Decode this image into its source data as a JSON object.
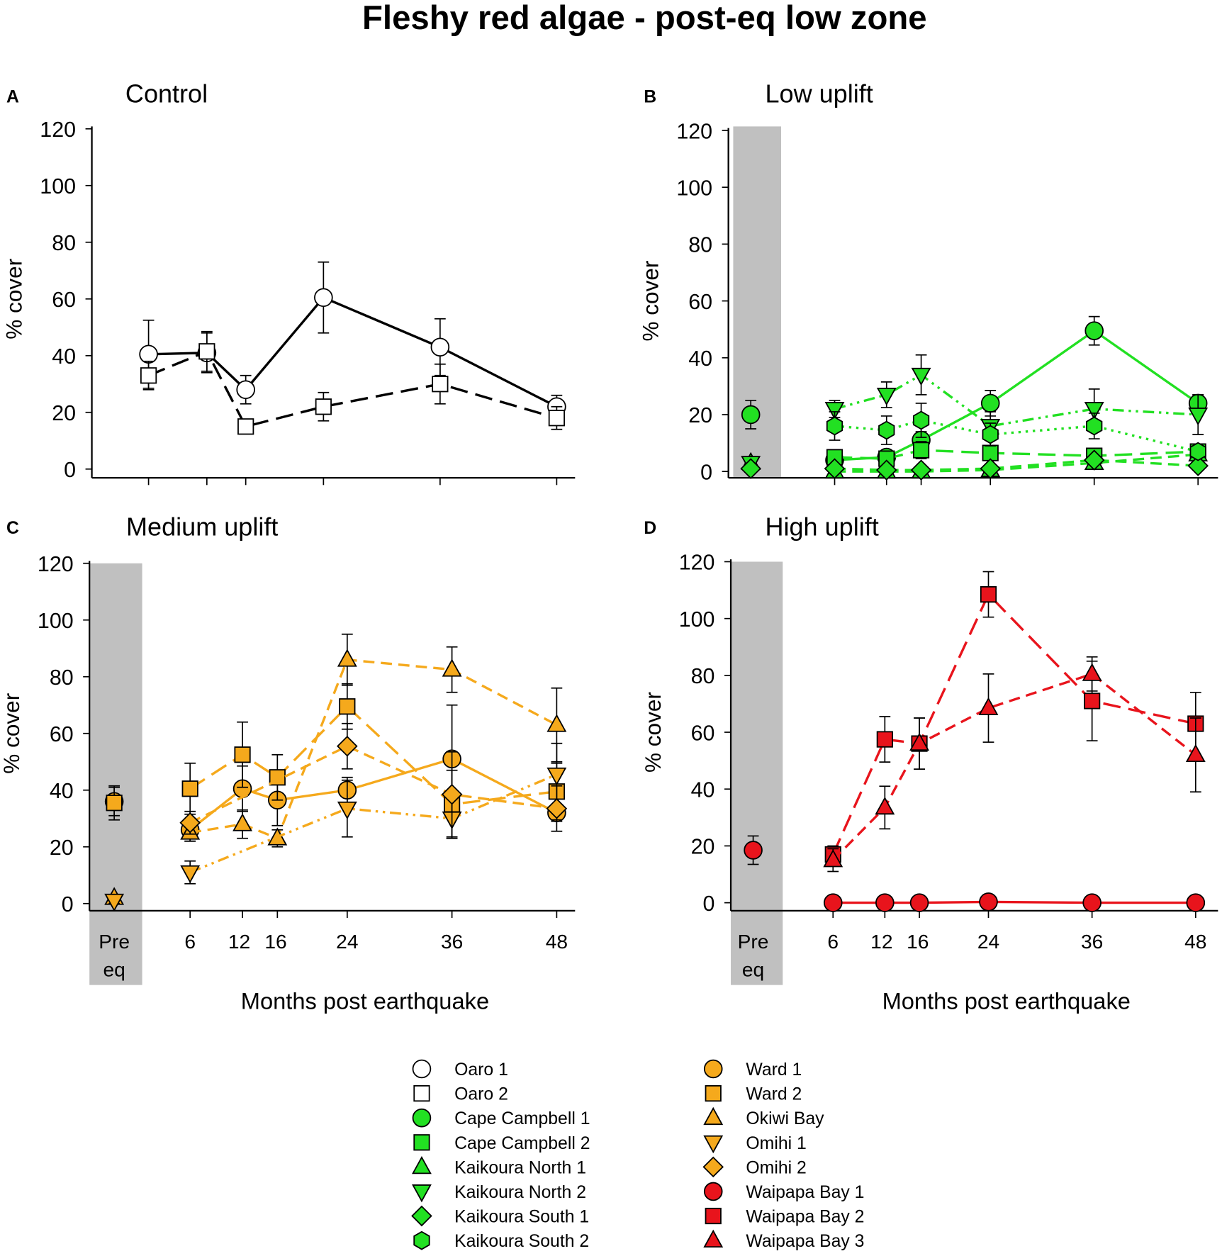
{
  "title": "Fleshy red algae - post-eq low zone",
  "colors": {
    "control": "#ffffff",
    "low": "#22e022",
    "medium": "#f5a91c",
    "high": "#e8141c",
    "shade": "#c0c0c0"
  },
  "chart_data": [
    {
      "panel": "A",
      "title": "Control",
      "type": "line",
      "ylabel": "% cover",
      "xlabel": "",
      "ylim": [
        0,
        120
      ],
      "yticks": [
        0,
        20,
        40,
        60,
        80,
        100,
        120
      ],
      "x_ticks": [
        6,
        12,
        16,
        24,
        36,
        48
      ],
      "x_tick_labels": [],
      "pre_eq_shaded": false,
      "color_key": "control",
      "series": [
        {
          "name": "Oaro 1",
          "marker": "circle",
          "line": "solid",
          "x": [
            6,
            12,
            16,
            24,
            36,
            48
          ],
          "y": [
            40.5,
            41,
            28,
            60.5,
            43,
            22
          ],
          "err": [
            12,
            7,
            5,
            12.5,
            10,
            4
          ]
        },
        {
          "name": "Oaro 2",
          "marker": "square",
          "line": "long-dash",
          "x": [
            6,
            12,
            16,
            24,
            36,
            48
          ],
          "y": [
            33,
            41.5,
            15,
            22,
            30,
            18
          ],
          "err": [
            5,
            7,
            2,
            5,
            7,
            4
          ]
        }
      ]
    },
    {
      "panel": "B",
      "title": "Low uplift",
      "type": "line",
      "ylabel": "% cover",
      "xlabel": "",
      "ylim": [
        0,
        120
      ],
      "yticks": [
        0,
        20,
        40,
        60,
        80,
        100,
        120
      ],
      "x_ticks": [
        6,
        12,
        16,
        24,
        36,
        48
      ],
      "x_tick_labels": [],
      "pre_eq_shaded": true,
      "color_key": "low",
      "series": [
        {
          "name": "Cape Campbell 1",
          "marker": "circle",
          "line": "solid",
          "x": [
            "Pre eq",
            6,
            12,
            16,
            24,
            36,
            48
          ],
          "y": [
            20,
            4,
            5,
            11,
            24,
            49.5,
            24
          ],
          "err": [
            5,
            1,
            1,
            3,
            4.5,
            5,
            3
          ]
        },
        {
          "name": "Cape Campbell 2",
          "marker": "square",
          "line": "long-dash",
          "x": [
            6,
            12,
            16,
            24,
            36,
            48
          ],
          "y": [
            5,
            4.5,
            7.5,
            6.5,
            5.5,
            7
          ],
          "err": [
            1,
            1.5,
            3,
            1.5,
            1,
            1.5
          ]
        },
        {
          "name": "Kaikoura North 1",
          "marker": "triangle-up",
          "line": "dash",
          "x": [
            "Pre eq",
            6,
            12,
            16,
            24,
            36,
            48
          ],
          "y": [
            3,
            0,
            0,
            0,
            0.5,
            3,
            6
          ],
          "err": [
            1,
            0.5,
            0.5,
            0.5,
            0.5,
            1,
            1
          ]
        },
        {
          "name": "Kaikoura North 2",
          "marker": "triangle-down",
          "line": "dash-dot-dot",
          "x": [
            "Pre eq",
            6,
            12,
            16,
            24,
            36,
            48
          ],
          "y": [
            3,
            22,
            27,
            34,
            16,
            22,
            20
          ],
          "err": [
            1,
            3,
            4.5,
            7,
            5,
            7,
            7
          ]
        },
        {
          "name": "Kaikoura South 1",
          "marker": "diamond",
          "line": "dash",
          "x": [
            "Pre eq",
            6,
            12,
            16,
            24,
            36,
            48
          ],
          "y": [
            1,
            1,
            0.5,
            0.5,
            1,
            4,
            2
          ],
          "err": [
            0.5,
            0.5,
            0.5,
            0.5,
            0.5,
            1,
            0.5
          ]
        },
        {
          "name": "Kaikoura South 2",
          "marker": "hexagon",
          "line": "dotted",
          "x": [
            6,
            12,
            16,
            24,
            36,
            48
          ],
          "y": [
            16,
            14.5,
            18,
            13,
            16,
            7
          ],
          "err": [
            5,
            5,
            6,
            4,
            4.5,
            2
          ]
        }
      ]
    },
    {
      "panel": "C",
      "title": "Medium uplift",
      "type": "line",
      "ylabel": "% cover",
      "xlabel": "Months post earthquake",
      "ylim": [
        0,
        120
      ],
      "yticks": [
        0,
        20,
        40,
        60,
        80,
        100,
        120
      ],
      "x_ticks": [
        6,
        12,
        16,
        24,
        36,
        48
      ],
      "x_tick_labels": [
        "6",
        "12",
        "16",
        "24",
        "36",
        "48"
      ],
      "pre_eq_label": [
        "Pre",
        "eq"
      ],
      "pre_eq_shaded": true,
      "color_key": "medium",
      "series": [
        {
          "name": "Ward 1",
          "marker": "circle",
          "line": "solid",
          "x": [
            "Pre eq",
            6,
            12,
            16,
            24,
            36,
            48
          ],
          "y": [
            36,
            26,
            40.5,
            36.5,
            40,
            51,
            32
          ],
          "err": [
            5,
            4,
            8,
            9,
            4.5,
            19,
            3
          ]
        },
        {
          "name": "Ward 2",
          "marker": "square",
          "line": "long-dash",
          "x": [
            "Pre eq",
            6,
            12,
            16,
            24,
            36,
            48
          ],
          "y": [
            35.5,
            40.5,
            52.5,
            44.5,
            69.5,
            35,
            39.5
          ],
          "err": [
            6,
            9,
            11.5,
            8,
            8,
            12,
            10
          ]
        },
        {
          "name": "Okiwi Bay",
          "marker": "triangle-up",
          "line": "dash",
          "x": [
            "Pre eq",
            6,
            12,
            16,
            24,
            36,
            48
          ],
          "y": [
            2,
            25,
            28,
            23,
            86,
            82.5,
            63
          ],
          "err": [
            1,
            3,
            5,
            3,
            9,
            8,
            13
          ]
        },
        {
          "name": "Omihi 1",
          "marker": "triangle-down",
          "line": "dash-dot-dot",
          "x": [
            "Pre eq",
            6,
            24,
            36,
            48
          ],
          "y": [
            1,
            11,
            33.5,
            30,
            45.5
          ],
          "err": [
            1,
            4,
            10,
            7,
            11
          ]
        },
        {
          "name": "Omihi 2",
          "marker": "diamond",
          "line": "dash",
          "x": [
            6,
            24,
            36,
            48
          ],
          "y": [
            28.5,
            55.5,
            38.5,
            33.5
          ],
          "err": [
            4,
            8,
            15,
            8
          ]
        }
      ]
    },
    {
      "panel": "D",
      "title": "High uplift",
      "type": "line",
      "ylabel": "% cover",
      "xlabel": "Months post earthquake",
      "ylim": [
        0,
        120
      ],
      "yticks": [
        0,
        20,
        40,
        60,
        80,
        100,
        120
      ],
      "x_ticks": [
        6,
        12,
        16,
        24,
        36,
        48
      ],
      "x_tick_labels": [
        "6",
        "12",
        "16",
        "24",
        "36",
        "48"
      ],
      "pre_eq_label": [
        "Pre",
        "eq"
      ],
      "pre_eq_shaded": true,
      "color_key": "high",
      "series": [
        {
          "name": "Waipapa Bay 1",
          "marker": "circle",
          "line": "solid",
          "x": [
            "Pre eq",
            6,
            12,
            16,
            24,
            36,
            48
          ],
          "y": [
            18.5,
            0,
            0,
            0,
            0.3,
            0,
            0
          ],
          "err": [
            5,
            0,
            0,
            0,
            0,
            0,
            0
          ]
        },
        {
          "name": "Waipapa Bay 2",
          "marker": "square",
          "line": "long-dash",
          "x": [
            6,
            12,
            16,
            24,
            36,
            48
          ],
          "y": [
            17,
            57.5,
            56,
            108.5,
            71,
            63
          ],
          "err": [
            3,
            8,
            9,
            8,
            14,
            11
          ]
        },
        {
          "name": "Waipapa Bay 3",
          "marker": "triangle-up",
          "line": "dash",
          "x": [
            6,
            12,
            16,
            24,
            36,
            48
          ],
          "y": [
            15,
            33.5,
            56,
            68.5,
            80.5,
            52
          ],
          "err": [
            4,
            7.5,
            9,
            12,
            6,
            13
          ]
        }
      ]
    }
  ],
  "legend": {
    "columns": [
      [
        {
          "label": "Oaro 1",
          "marker": "circle",
          "color_key": "control"
        },
        {
          "label": "Oaro 2",
          "marker": "square",
          "color_key": "control"
        },
        {
          "label": "Cape Campbell 1",
          "marker": "circle",
          "color_key": "low"
        },
        {
          "label": "Cape Campbell 2",
          "marker": "square",
          "color_key": "low"
        },
        {
          "label": "Kaikoura North 1",
          "marker": "triangle-up",
          "color_key": "low"
        },
        {
          "label": "Kaikoura North 2",
          "marker": "triangle-down",
          "color_key": "low"
        },
        {
          "label": "Kaikoura South 1",
          "marker": "diamond",
          "color_key": "low"
        },
        {
          "label": "Kaikoura South 2",
          "marker": "hexagon",
          "color_key": "low"
        }
      ],
      [
        {
          "label": "Ward 1",
          "marker": "circle",
          "color_key": "medium"
        },
        {
          "label": "Ward 2",
          "marker": "square",
          "color_key": "medium"
        },
        {
          "label": "Okiwi Bay",
          "marker": "triangle-up",
          "color_key": "medium"
        },
        {
          "label": "Omihi 1",
          "marker": "triangle-down",
          "color_key": "medium"
        },
        {
          "label": "Omihi 2",
          "marker": "diamond",
          "color_key": "medium"
        },
        {
          "label": "Waipapa Bay 1",
          "marker": "circle",
          "color_key": "high"
        },
        {
          "label": "Waipapa Bay 2",
          "marker": "square",
          "color_key": "high"
        },
        {
          "label": "Waipapa Bay 3",
          "marker": "triangle-up",
          "color_key": "high"
        }
      ]
    ]
  }
}
